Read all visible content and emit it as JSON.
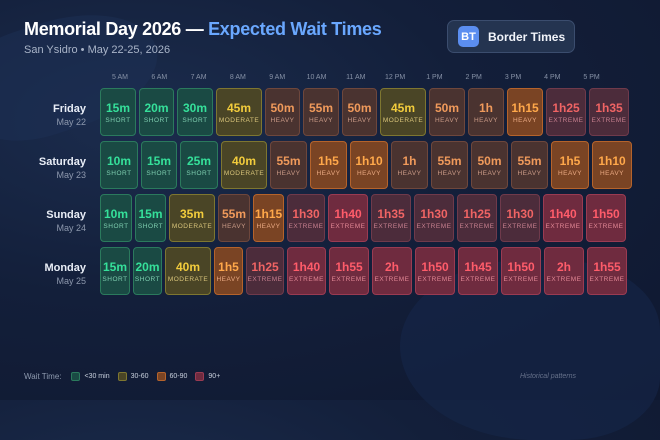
{
  "header": {
    "title_main": "Memorial Day 2026 — ",
    "title_accent": "Expected Wait Times",
    "subtitle": "San Ysidro • May 22-25, 2026"
  },
  "brand": {
    "logo_text": "BT",
    "name": "Border Times",
    "accent_color": "#5b8ef0"
  },
  "hours": [
    "5 AM",
    "6 AM",
    "7 AM",
    "8 AM",
    "9 AM",
    "10 AM",
    "11 AM",
    "12 PM",
    "1 PM",
    "2 PM",
    "3 PM",
    "4 PM",
    "5 PM"
  ],
  "days": [
    {
      "day": "Friday",
      "date": "May 22",
      "cells": [
        {
          "time": "15m",
          "label": "SHORT",
          "level": "short"
        },
        {
          "time": "20m",
          "label": "SHORT",
          "level": "short"
        },
        {
          "time": "30m",
          "label": "SHORT",
          "level": "short"
        },
        {
          "time": "45m",
          "label": "MODERATE",
          "level": "moderate"
        },
        {
          "time": "50m",
          "label": "HEAVY",
          "level": "heavy"
        },
        {
          "time": "55m",
          "label": "HEAVY",
          "level": "heavy"
        },
        {
          "time": "50m",
          "label": "HEAVY",
          "level": "heavy"
        },
        {
          "time": "45m",
          "label": "MODERATE",
          "level": "moderate"
        },
        {
          "time": "50m",
          "label": "HEAVY",
          "level": "heavy"
        },
        {
          "time": "1h",
          "label": "HEAVY",
          "level": "heavy"
        },
        {
          "time": "1h15",
          "label": "HEAVY",
          "level": "heavy-strong"
        },
        {
          "time": "1h25",
          "label": "EXTREME",
          "level": "extreme"
        },
        {
          "time": "1h35",
          "label": "EXTREME",
          "level": "extreme"
        }
      ]
    },
    {
      "day": "Saturday",
      "date": "May 23",
      "cells": [
        {
          "time": "10m",
          "label": "SHORT",
          "level": "short"
        },
        {
          "time": "15m",
          "label": "SHORT",
          "level": "short"
        },
        {
          "time": "25m",
          "label": "SHORT",
          "level": "short"
        },
        {
          "time": "40m",
          "label": "MODERATE",
          "level": "moderate"
        },
        {
          "time": "55m",
          "label": "HEAVY",
          "level": "heavy"
        },
        {
          "time": "1h5",
          "label": "HEAVY",
          "level": "heavy-strong"
        },
        {
          "time": "1h10",
          "label": "HEAVY",
          "level": "heavy-strong"
        },
        {
          "time": "1h",
          "label": "HEAVY",
          "level": "heavy"
        },
        {
          "time": "55m",
          "label": "HEAVY",
          "level": "heavy"
        },
        {
          "time": "50m",
          "label": "HEAVY",
          "level": "heavy"
        },
        {
          "time": "55m",
          "label": "HEAVY",
          "level": "heavy"
        },
        {
          "time": "1h5",
          "label": "HEAVY",
          "level": "heavy-strong"
        },
        {
          "time": "1h10",
          "label": "HEAVY",
          "level": "heavy-strong"
        }
      ]
    },
    {
      "day": "Sunday",
      "date": "May 24",
      "cells": [
        {
          "time": "10m",
          "label": "SHORT",
          "level": "short"
        },
        {
          "time": "15m",
          "label": "SHORT",
          "level": "short"
        },
        {
          "time": "35m",
          "label": "MODERATE",
          "level": "moderate"
        },
        {
          "time": "55m",
          "label": "HEAVY",
          "level": "heavy"
        },
        {
          "time": "1h15",
          "label": "HEAVY",
          "level": "heavy-strong"
        },
        {
          "time": "1h30",
          "label": "EXTREME",
          "level": "extreme"
        },
        {
          "time": "1h40",
          "label": "EXTREME",
          "level": "extreme-strong"
        },
        {
          "time": "1h35",
          "label": "EXTREME",
          "level": "extreme"
        },
        {
          "time": "1h30",
          "label": "EXTREME",
          "level": "extreme"
        },
        {
          "time": "1h25",
          "label": "EXTREME",
          "level": "extreme"
        },
        {
          "time": "1h30",
          "label": "EXTREME",
          "level": "extreme"
        },
        {
          "time": "1h40",
          "label": "EXTREME",
          "level": "extreme-strong"
        },
        {
          "time": "1h50",
          "label": "EXTREME",
          "level": "extreme-strong"
        }
      ]
    },
    {
      "day": "Monday",
      "date": "May 25",
      "cells": [
        {
          "time": "15m",
          "label": "SHORT",
          "level": "short"
        },
        {
          "time": "20m",
          "label": "SHORT",
          "level": "short"
        },
        {
          "time": "40m",
          "label": "MODERATE",
          "level": "moderate"
        },
        {
          "time": "1h5",
          "label": "HEAVY",
          "level": "heavy-strong"
        },
        {
          "time": "1h25",
          "label": "EXTREME",
          "level": "extreme"
        },
        {
          "time": "1h40",
          "label": "EXTREME",
          "level": "extreme-strong"
        },
        {
          "time": "1h55",
          "label": "EXTREME",
          "level": "extreme-strong"
        },
        {
          "time": "2h",
          "label": "EXTREME",
          "level": "extreme-strong"
        },
        {
          "time": "1h50",
          "label": "EXTREME",
          "level": "extreme-strong"
        },
        {
          "time": "1h45",
          "label": "EXTREME",
          "level": "extreme-strong"
        },
        {
          "time": "1h50",
          "label": "EXTREME",
          "level": "extreme-strong"
        },
        {
          "time": "2h",
          "label": "EXTREME",
          "level": "extreme-strong"
        },
        {
          "time": "1h55",
          "label": "EXTREME",
          "level": "extreme-strong"
        }
      ]
    }
  ],
  "legend": {
    "title": "Wait Time:",
    "items": [
      {
        "label": "<30 min",
        "color": "#2b7a5d"
      },
      {
        "label": "30-60",
        "color": "#7e7630"
      },
      {
        "label": "60-90",
        "color": "#b5632b"
      },
      {
        "label": "90+",
        "color": "#9a3b52"
      }
    ]
  },
  "footnote": "Historical patterns"
}
